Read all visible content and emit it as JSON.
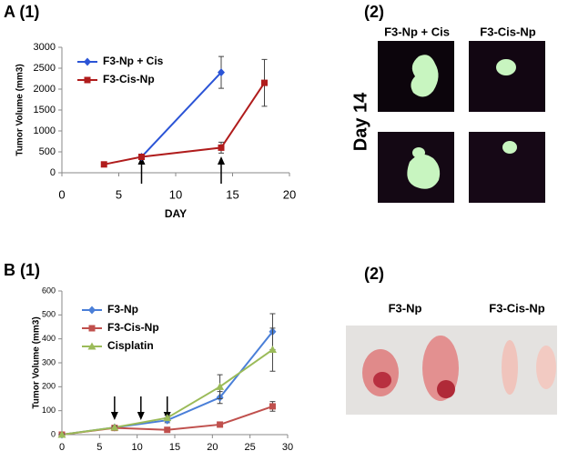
{
  "chart_data": [
    {
      "type": "line",
      "ylabel": "Tumor Volume (mm3)",
      "xlabel": "DAY",
      "xlim": [
        0,
        20
      ],
      "xticks": [
        0,
        5,
        10,
        15,
        20
      ],
      "ylim": [
        0,
        3000
      ],
      "yticks": [
        0,
        500,
        1000,
        1500,
        2000,
        2500,
        3000
      ],
      "arrows": [
        7,
        14
      ],
      "legend": "upper left",
      "series": [
        {
          "name": "F3-Np + Cis",
          "color": "#2b54d6",
          "marker": "diamond",
          "x": [
            7,
            14
          ],
          "values": [
            380,
            2400
          ],
          "errors": [
            50,
            380
          ]
        },
        {
          "name": "F3-Cis-Np",
          "color": "#b01c1c",
          "marker": "square",
          "x": [
            3.7,
            7,
            14,
            17.8
          ],
          "values": [
            200,
            380,
            600,
            2150
          ],
          "errors": [
            30,
            60,
            130,
            560
          ]
        }
      ]
    },
    {
      "type": "line",
      "ylabel": "Tumor Volume (mm3)",
      "xlim": [
        0,
        30
      ],
      "xticks": [
        0,
        5,
        10,
        15,
        20,
        25,
        30
      ],
      "ylim": [
        0,
        600
      ],
      "yticks": [
        0,
        100,
        200,
        300,
        400,
        500,
        600
      ],
      "arrows": [
        7,
        10.5,
        14
      ],
      "legend": "upper left",
      "series": [
        {
          "name": "F3-Np",
          "color": "#4a7fd8",
          "marker": "diamond",
          "x": [
            0,
            7,
            14,
            21,
            28
          ],
          "values": [
            0,
            30,
            60,
            155,
            430
          ],
          "errors": [
            5,
            5,
            10,
            25,
            75
          ]
        },
        {
          "name": "F3-Cis-Np",
          "color": "#c0504d",
          "marker": "square",
          "x": [
            0,
            7,
            14,
            21,
            28
          ],
          "values": [
            0,
            28,
            20,
            42,
            118
          ],
          "errors": [
            3,
            5,
            5,
            8,
            20
          ]
        },
        {
          "name": "Cisplatin",
          "color": "#9bbb59",
          "marker": "triangle",
          "x": [
            0,
            7,
            14,
            21,
            28
          ],
          "values": [
            0,
            30,
            70,
            200,
            355
          ],
          "errors": [
            3,
            5,
            10,
            50,
            90
          ]
        }
      ]
    }
  ],
  "panels": {
    "a_label": "A (1)",
    "b_label": "B (1)",
    "a_image": {
      "label": "(2)",
      "columns": [
        "F3-Np + Cis",
        "F3-Cis-Np"
      ],
      "row_label": "Day 14"
    },
    "b_image": {
      "label": "(2)",
      "columns": [
        "F3-Np",
        "F3-Cis-Np"
      ]
    }
  }
}
